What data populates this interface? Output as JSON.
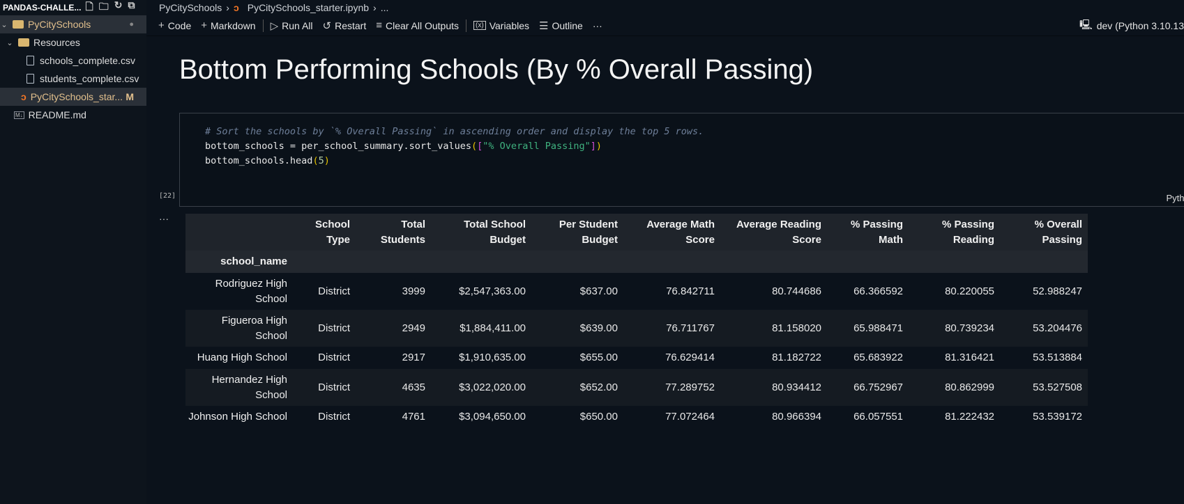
{
  "sidebar": {
    "workspace": "PANDAS-CHALLE...",
    "items": [
      {
        "label": "PyCitySchools",
        "badge": "●"
      },
      {
        "label": "Resources"
      },
      {
        "label": "schools_complete.csv"
      },
      {
        "label": "students_complete.csv"
      },
      {
        "label": "PyCitySchools_star...",
        "badge": "M"
      },
      {
        "label": "README.md",
        "icon_text": "M↓"
      }
    ]
  },
  "breadcrumb": {
    "folder": "PyCitySchools",
    "file": "PyCitySchools_starter.ipynb",
    "more": "..."
  },
  "toolbar": {
    "code": "Code",
    "markdown": "Markdown",
    "run_all": "Run All",
    "restart": "Restart",
    "clear": "Clear All Outputs",
    "variables": "Variables",
    "outline": "Outline",
    "more": "···",
    "kernel": "dev (Python 3.10.13"
  },
  "notebook": {
    "heading": "Bottom Performing Schools (By % Overall Passing)",
    "code": {
      "comment": "# Sort the schools by `% Overall Passing` in ascending order and display the top 5 rows.",
      "line2_a": "bottom_schools = per_school_summary.sort_values",
      "line2_p1": "(",
      "line2_b1": "[",
      "line2_str": "\"% Overall Passing\"",
      "line2_b2": "]",
      "line2_p2": ")",
      "line3_a": "bottom_schools.head",
      "line3_p1": "(",
      "line3_n": "5",
      "line3_p2": ")"
    },
    "language": "Python",
    "exec_count": "[22]",
    "output_marker": "···"
  },
  "table": {
    "index_name": "school_name",
    "columns": [
      "School Type",
      "Total Students",
      "Total School Budget",
      "Per Student Budget",
      "Average Math Score",
      "Average Reading Score",
      "% Passing Math",
      "% Passing Reading",
      "% Overall Passing"
    ],
    "rows": [
      [
        "Rodriguez High School",
        "District",
        "3999",
        "$2,547,363.00",
        "$637.00",
        "76.842711",
        "80.744686",
        "66.366592",
        "80.220055",
        "52.988247"
      ],
      [
        "Figueroa High School",
        "District",
        "2949",
        "$1,884,411.00",
        "$639.00",
        "76.711767",
        "81.158020",
        "65.988471",
        "80.739234",
        "53.204476"
      ],
      [
        "Huang High School",
        "District",
        "2917",
        "$1,910,635.00",
        "$655.00",
        "76.629414",
        "81.182722",
        "65.683922",
        "81.316421",
        "53.513884"
      ],
      [
        "Hernandez High School",
        "District",
        "4635",
        "$3,022,020.00",
        "$652.00",
        "77.289752",
        "80.934412",
        "66.752967",
        "80.862999",
        "53.527508"
      ],
      [
        "Johnson High School",
        "District",
        "4761",
        "$3,094,650.00",
        "$650.00",
        "77.072464",
        "80.966394",
        "66.057551",
        "81.222432",
        "53.539172"
      ]
    ]
  }
}
